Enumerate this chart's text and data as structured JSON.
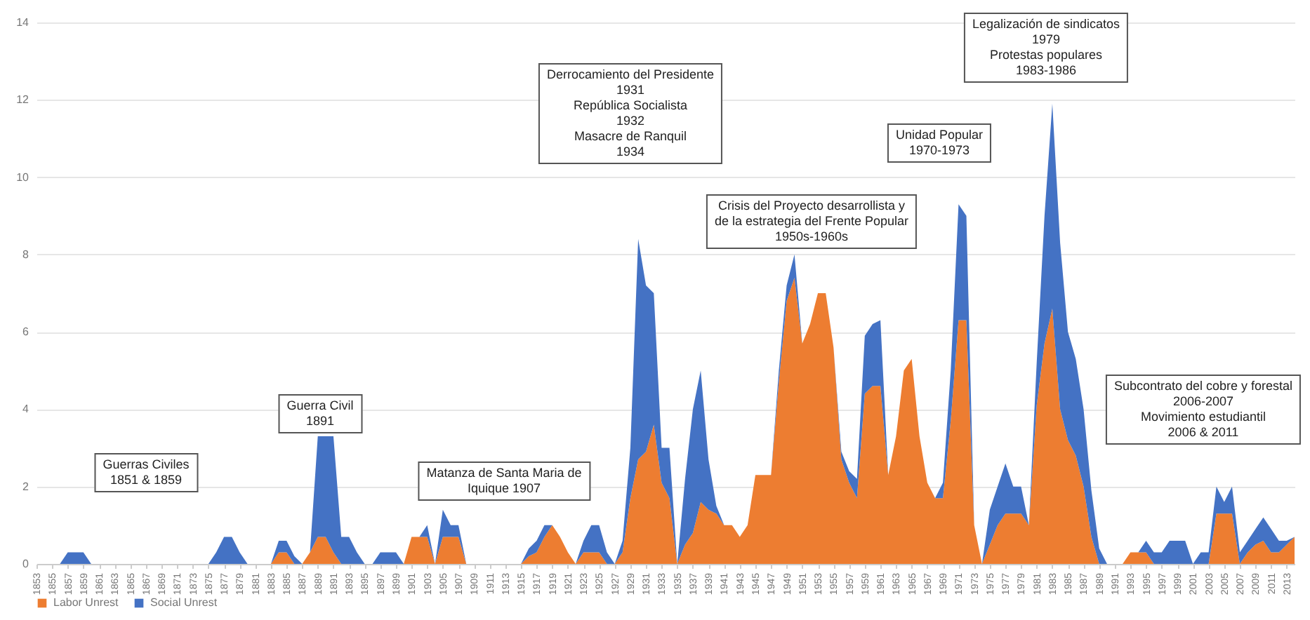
{
  "chart_data": {
    "type": "area",
    "stacked": true,
    "grid": "y",
    "legend": "bottom",
    "x": [
      1853,
      1854,
      1855,
      1856,
      1857,
      1858,
      1859,
      1860,
      1861,
      1862,
      1863,
      1864,
      1865,
      1866,
      1867,
      1868,
      1869,
      1870,
      1871,
      1872,
      1873,
      1874,
      1875,
      1876,
      1877,
      1878,
      1879,
      1880,
      1881,
      1882,
      1883,
      1884,
      1885,
      1886,
      1887,
      1888,
      1889,
      1890,
      1891,
      1892,
      1893,
      1894,
      1895,
      1896,
      1897,
      1898,
      1899,
      1900,
      1901,
      1902,
      1903,
      1904,
      1905,
      1906,
      1907,
      1908,
      1909,
      1910,
      1911,
      1912,
      1913,
      1914,
      1915,
      1916,
      1917,
      1918,
      1919,
      1920,
      1921,
      1922,
      1923,
      1924,
      1925,
      1926,
      1927,
      1928,
      1929,
      1930,
      1931,
      1932,
      1933,
      1934,
      1935,
      1936,
      1937,
      1938,
      1939,
      1940,
      1941,
      1942,
      1943,
      1944,
      1945,
      1946,
      1947,
      1948,
      1949,
      1950,
      1951,
      1952,
      1953,
      1954,
      1955,
      1956,
      1957,
      1958,
      1959,
      1960,
      1961,
      1962,
      1963,
      1964,
      1965,
      1966,
      1967,
      1968,
      1969,
      1970,
      1971,
      1972,
      1973,
      1974,
      1975,
      1976,
      1977,
      1978,
      1979,
      1980,
      1981,
      1982,
      1983,
      1984,
      1985,
      1986,
      1987,
      1988,
      1989,
      1990,
      1991,
      1992,
      1993,
      1994,
      1995,
      1996,
      1997,
      1998,
      1999,
      2000,
      2001,
      2002,
      2003,
      2004,
      2005,
      2006,
      2007,
      2008,
      2009,
      2010,
      2011,
      2012,
      2013,
      2014
    ],
    "xlim": [
      1853,
      2014
    ],
    "xticks": [
      1853,
      1855,
      1857,
      1859,
      1861,
      1863,
      1865,
      1867,
      1869,
      1871,
      1873,
      1875,
      1877,
      1879,
      1881,
      1883,
      1885,
      1887,
      1889,
      1891,
      1893,
      1895,
      1897,
      1899,
      1901,
      1903,
      1905,
      1907,
      1909,
      1911,
      1913,
      1915,
      1917,
      1919,
      1921,
      1923,
      1925,
      1927,
      1929,
      1931,
      1933,
      1935,
      1937,
      1939,
      1941,
      1943,
      1945,
      1947,
      1949,
      1951,
      1953,
      1955,
      1957,
      1959,
      1961,
      1963,
      1965,
      1967,
      1969,
      1971,
      1973,
      1975,
      1977,
      1979,
      1981,
      1983,
      1985,
      1987,
      1989,
      1991,
      1993,
      1995,
      1997,
      1999,
      2001,
      2003,
      2005,
      2007,
      2009,
      2011,
      2013
    ],
    "ylim": [
      0,
      14
    ],
    "yticks": [
      0,
      2,
      4,
      6,
      8,
      10,
      12,
      14
    ],
    "series": [
      {
        "name": "Labor Unrest",
        "color": "#ed7d31",
        "values": [
          0,
          0,
          0,
          0,
          0,
          0,
          0,
          0,
          0,
          0,
          0,
          0,
          0,
          0,
          0,
          0,
          0,
          0,
          0,
          0,
          0,
          0,
          0,
          0,
          0,
          0,
          0,
          0,
          0,
          0,
          0,
          0.3,
          0.3,
          0,
          0,
          0.3,
          0.7,
          0.7,
          0.3,
          0,
          0,
          0,
          0,
          0,
          0,
          0,
          0,
          0,
          0.7,
          0.7,
          0.7,
          0,
          0.7,
          0.7,
          0.7,
          0,
          0,
          0,
          0,
          0,
          0,
          0,
          0,
          0.2,
          0.3,
          0.7,
          1.0,
          0.7,
          0.3,
          0,
          0.3,
          0.3,
          0.3,
          0,
          0,
          0.3,
          1.7,
          2.7,
          2.9,
          3.6,
          2.1,
          1.7,
          0,
          0.5,
          0.8,
          1.6,
          1.4,
          1.3,
          1.0,
          1.0,
          0.7,
          1.0,
          2.3,
          2.3,
          2.3,
          4.7,
          6.8,
          7.4,
          5.7,
          6.2,
          7.0,
          7.0,
          5.6,
          2.7,
          2.1,
          1.7,
          4.4,
          4.6,
          4.6,
          2.3,
          3.3,
          5.0,
          5.3,
          3.3,
          2.1,
          1.7,
          1.7,
          3.7,
          6.3,
          6.3,
          1.0,
          0,
          0.5,
          1.0,
          1.3,
          1.3,
          1.3,
          1.0,
          4.1,
          5.7,
          6.6,
          4.0,
          3.2,
          2.8,
          2.0,
          0.7,
          0,
          0,
          0,
          0,
          0.3,
          0.3,
          0.3,
          0,
          0,
          0,
          0,
          0,
          0,
          0,
          0,
          1.3,
          1.3,
          1.3,
          0,
          0.3,
          0.5,
          0.6,
          0.3,
          0.3,
          0.5,
          0.7
        ]
      },
      {
        "name": "Social Unrest",
        "color": "#4472c4",
        "values": [
          0,
          0,
          0,
          0,
          0.3,
          0.3,
          0.3,
          0,
          0,
          0,
          0,
          0,
          0,
          0,
          0,
          0,
          0,
          0,
          0,
          0,
          0,
          0,
          0,
          0.3,
          0.7,
          0.7,
          0.3,
          0,
          0,
          0,
          0,
          0.3,
          0.3,
          0.2,
          0,
          0,
          2.6,
          2.6,
          3.0,
          0.7,
          0.7,
          0.3,
          0,
          0,
          0.3,
          0.3,
          0.3,
          0,
          0,
          0,
          0.3,
          0,
          0.7,
          0.3,
          0.3,
          0,
          0,
          0,
          0,
          0,
          0,
          0,
          0,
          0.2,
          0.3,
          0.3,
          0,
          0,
          0,
          0,
          0.3,
          0.7,
          0.7,
          0.3,
          0,
          0.3,
          1.3,
          5.7,
          4.3,
          3.4,
          0.9,
          1.3,
          0,
          1.7,
          3.2,
          3.4,
          1.3,
          0.2,
          0,
          0,
          0,
          0,
          0,
          0,
          0,
          0.3,
          0.4,
          0.6,
          0,
          0,
          0,
          0,
          0,
          0.2,
          0.3,
          0.5,
          1.5,
          1.6,
          1.7,
          0,
          0,
          0,
          0,
          0,
          0,
          0,
          0.4,
          1.3,
          3.0,
          2.7,
          0,
          0,
          0.9,
          1.0,
          1.3,
          0.7,
          0.7,
          0,
          1.1,
          3.3,
          5.3,
          4.3,
          2.8,
          2.5,
          2.0,
          1.2,
          0.4,
          0,
          0,
          0,
          0,
          0,
          0.3,
          0.3,
          0.3,
          0.6,
          0.6,
          0.6,
          0,
          0.3,
          0.3,
          0.7,
          0.3,
          0.7,
          0.3,
          0.3,
          0.4,
          0.6,
          0.6,
          0.3,
          0.1,
          0
        ]
      }
    ],
    "annotations": [
      "Guerras Civiles\n1851 & 1859",
      "Guerra Civil\n1891",
      "Matanza de Santa Maria de\nIquique 1907",
      "Derrocamiento del Presidente\n1931\nRepública Socialista\n1932\nMasacre de Ranquil\n1934",
      "Crisis del Proyecto desarrollista y\nde la estrategia del Frente Popular\n1950s-1960s",
      "Unidad Popular\n1970-1973",
      "Legalización de sindicatos\n1979\nProtestas populares\n1983-1986",
      "Subcontrato del cobre y forestal\n2006-2007\nMovimiento estudiantil\n2006 & 2011"
    ]
  }
}
